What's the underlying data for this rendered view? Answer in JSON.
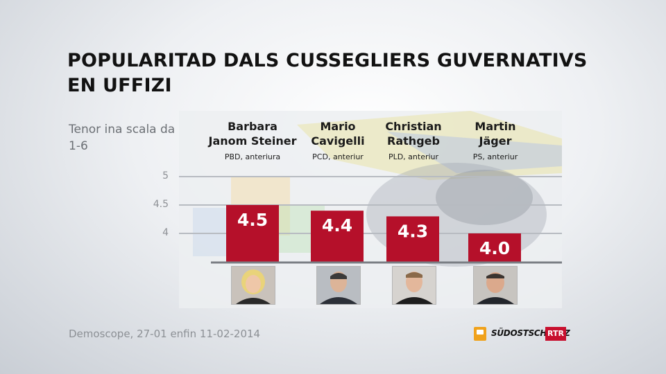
{
  "chart_data": {
    "type": "bar",
    "title": "POPULARITAD DALS CUSSEGLIERS GUVERNATIVS EN UFFIZI",
    "subtitle": "Tenor ina scala da 1-6",
    "categories": [
      "Barbara Janom Steiner",
      "Mario Cavigelli",
      "Christian Rathgeb",
      "Martin Jäger"
    ],
    "parties": [
      "PBD, anteriura",
      "PCD, anteriur",
      "PLD, anteriur",
      "PS, anteriur"
    ],
    "values": [
      4.5,
      4.4,
      4.3,
      4.0
    ],
    "value_labels": [
      "4.5",
      "4.4",
      "4.3",
      "4.0"
    ],
    "yticks": [
      "5",
      "4.5",
      "4"
    ],
    "ylim": [
      3.5,
      5.0
    ],
    "grid": true,
    "bar_color": "#b5102a",
    "source": "Demoscope, 27-01 enfin 11-02-2014"
  },
  "candidates": [
    {
      "name_line1": "Barbara",
      "name_line2": "Janom Steiner",
      "party": "PBD, anteriura"
    },
    {
      "name_line1": "Mario",
      "name_line2": "Cavigelli",
      "party": "PCD, anteriur"
    },
    {
      "name_line1": "Christian",
      "name_line2": "Rathgeb",
      "party": "PLD, anteriur"
    },
    {
      "name_line1": "Martin",
      "name_line2": "Jäger",
      "party": "PS, anteriur"
    }
  ],
  "logos": {
    "southeast": "SÜDOSTSCHWEIZ",
    "rtr": "RTR"
  }
}
